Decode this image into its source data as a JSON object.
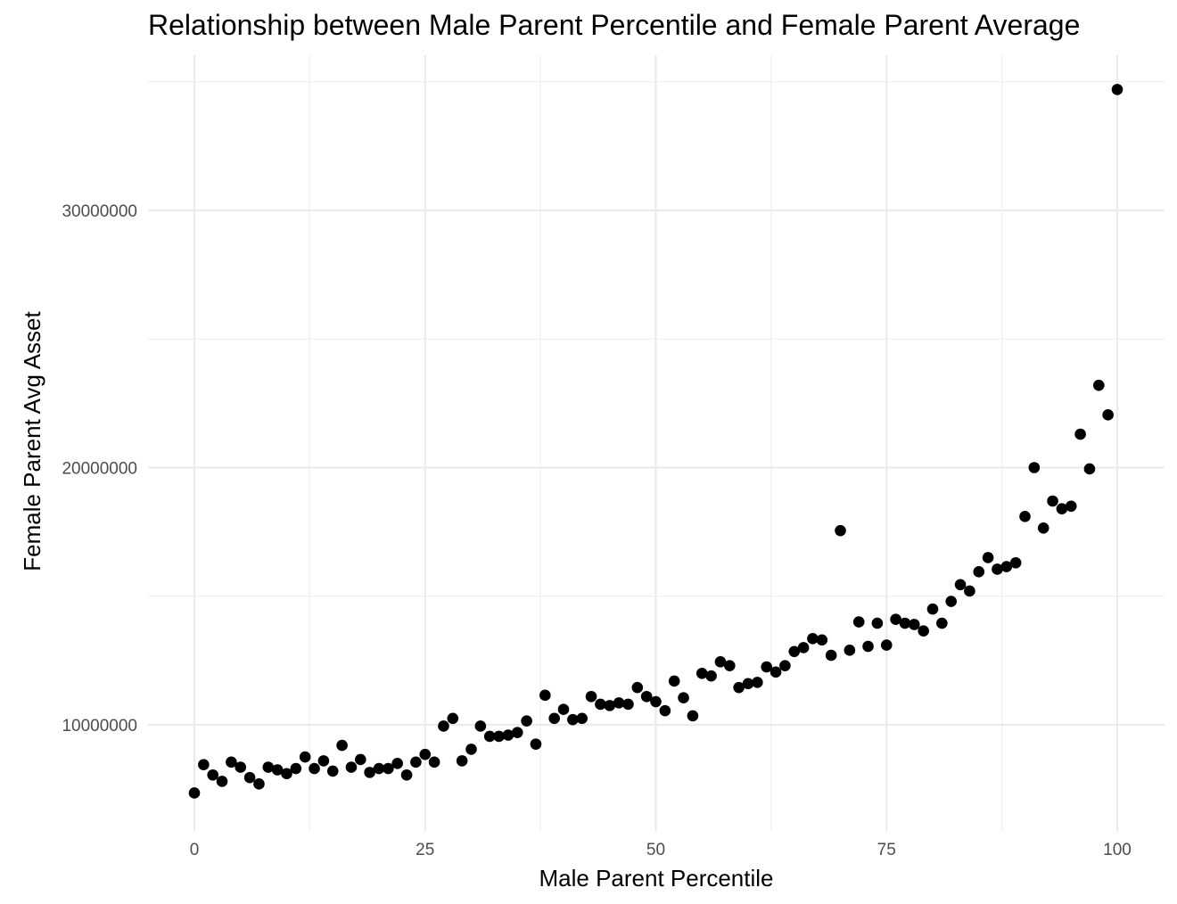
{
  "chart_data": {
    "type": "scatter",
    "title": "Relationship between Male Parent Percentile and Female Parent Average",
    "xlabel": "Male Parent Percentile",
    "ylabel": "Female Parent Avg Asset",
    "xlim": [
      -5,
      105
    ],
    "ylim": [
      6000000,
      35500000
    ],
    "x_ticks": [
      0,
      25,
      50,
      75,
      100
    ],
    "x_tick_labels": [
      "0",
      "25",
      "50",
      "75",
      "100"
    ],
    "x_minor_ticks": [
      12.5,
      37.5,
      62.5,
      87.5
    ],
    "y_ticks": [
      10000000,
      20000000,
      30000000
    ],
    "y_tick_labels": [
      "10000000",
      "20000000",
      "30000000"
    ],
    "y_minor_ticks": [
      15000000,
      25000000
    ],
    "grid": true,
    "point_color": "#000000",
    "series": [
      {
        "name": "Female Parent Avg Asset",
        "x": [
          0,
          1,
          2,
          3,
          4,
          5,
          6,
          7,
          8,
          9,
          10,
          11,
          12,
          13,
          14,
          15,
          16,
          17,
          18,
          19,
          20,
          21,
          22,
          23,
          24,
          25,
          26,
          27,
          28,
          29,
          30,
          31,
          32,
          33,
          34,
          35,
          36,
          37,
          38,
          39,
          40,
          41,
          42,
          43,
          44,
          45,
          46,
          47,
          48,
          49,
          50,
          51,
          52,
          53,
          54,
          55,
          56,
          57,
          58,
          59,
          60,
          61,
          62,
          63,
          64,
          65,
          66,
          67,
          68,
          69,
          70,
          71,
          72,
          73,
          74,
          75,
          76,
          77,
          78,
          79,
          80,
          81,
          82,
          83,
          84,
          85,
          86,
          87,
          88,
          89,
          90,
          91,
          92,
          93,
          94,
          95,
          96,
          97,
          98,
          99,
          100
        ],
        "y": [
          7350000,
          8450000,
          8050000,
          7800000,
          8550000,
          8350000,
          7950000,
          7700000,
          8350000,
          8250000,
          8100000,
          8300000,
          8750000,
          8300000,
          8600000,
          8200000,
          9200000,
          8350000,
          8650000,
          8150000,
          8300000,
          8300000,
          8500000,
          8050000,
          8550000,
          8850000,
          8550000,
          9950000,
          10250000,
          8600000,
          9050000,
          9950000,
          9550000,
          9550000,
          9600000,
          9700000,
          10150000,
          9250000,
          11150000,
          10250000,
          10600000,
          10200000,
          10250000,
          11100000,
          10800000,
          10750000,
          10850000,
          10800000,
          11450000,
          11100000,
          10900000,
          10550000,
          11700000,
          11050000,
          10350000,
          12000000,
          11900000,
          12450000,
          12300000,
          11450000,
          11600000,
          11650000,
          12250000,
          12050000,
          12300000,
          12850000,
          13000000,
          13350000,
          13300000,
          12700000,
          17550000,
          12900000,
          14000000,
          13050000,
          13950000,
          13100000,
          14100000,
          13950000,
          13900000,
          13650000,
          14500000,
          13950000,
          14800000,
          15450000,
          15200000,
          15950000,
          16500000,
          16050000,
          16150000,
          16300000,
          18100000,
          20000000,
          17650000,
          18700000,
          18400000,
          18500000,
          21300000,
          19950000,
          23200000,
          22050000,
          34700000
        ]
      }
    ]
  }
}
